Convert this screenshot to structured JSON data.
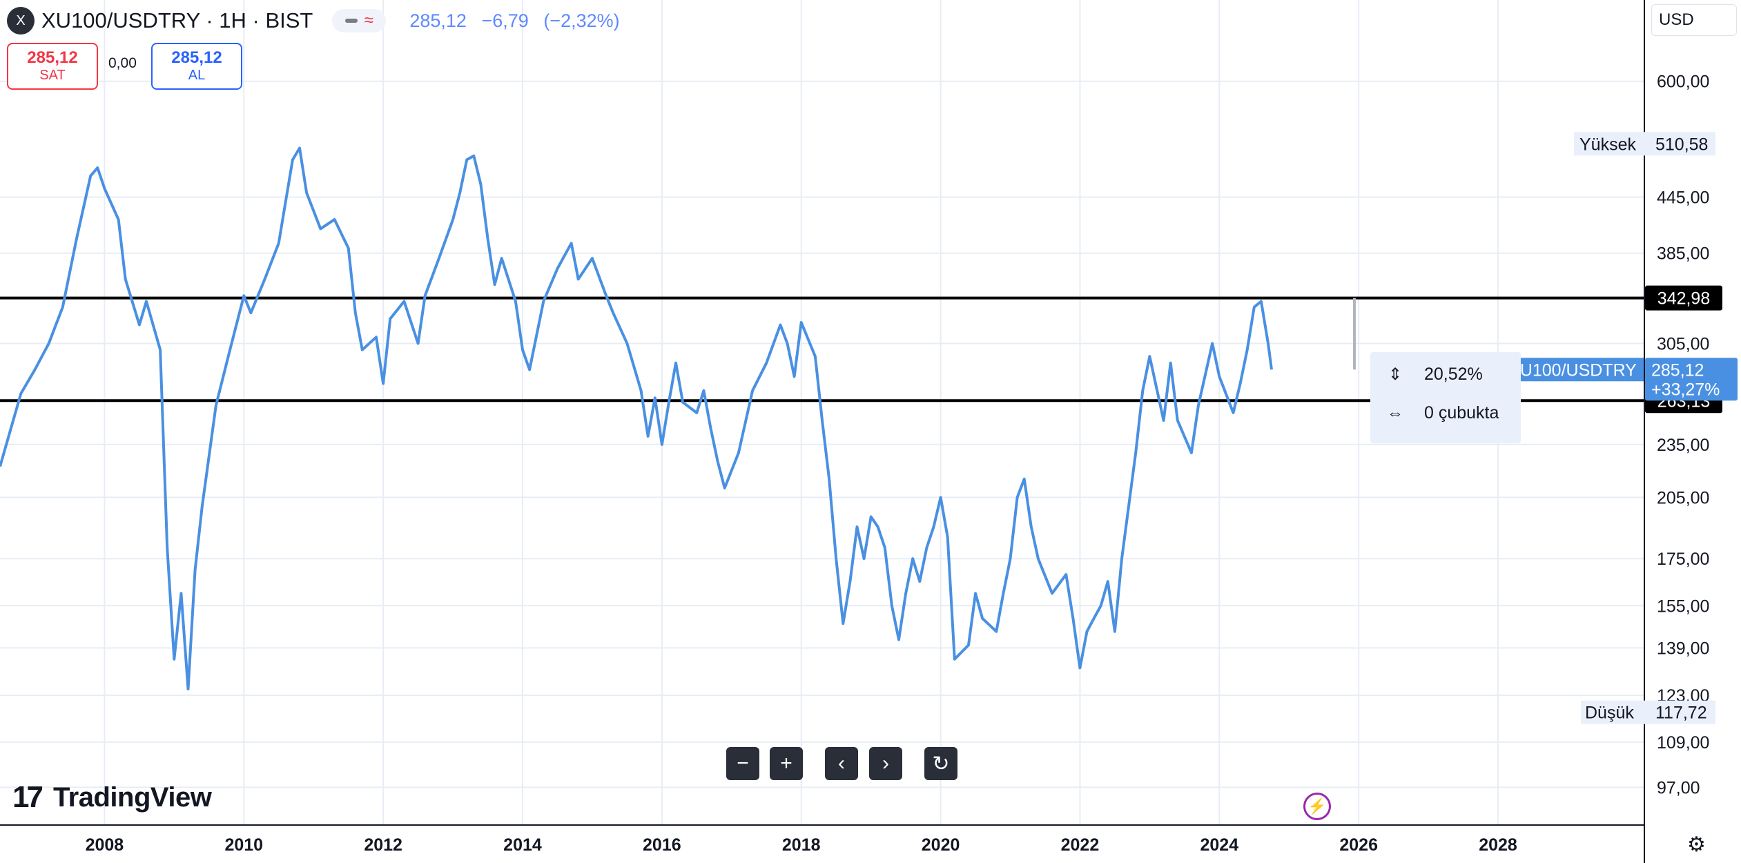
{
  "header": {
    "logo_letter": "X",
    "symbol_title": "XU100/USDTRY · 1H · BIST",
    "last_price": "285,12",
    "change": "−6,79",
    "change_percent": "(−2,32%)",
    "sell_price": "285,12",
    "sell_label": "SAT",
    "spread": "0,00",
    "buy_price": "285,12",
    "buy_label": "AL",
    "currency": "USD"
  },
  "chart_data": {
    "type": "line",
    "symbol": "XU100/USDTRY",
    "x_ticks": [
      "2008",
      "2010",
      "2012",
      "2014",
      "2016",
      "2018",
      "2020",
      "2022",
      "2024",
      "2026",
      "2028"
    ],
    "y_scale": "log",
    "y_ticks": [
      "97,00",
      "109,00",
      "123,00",
      "139,00",
      "155,00",
      "175,00",
      "205,00",
      "235,00",
      "305,00",
      "385,00",
      "445,00",
      "600,00"
    ],
    "xlim": [
      2006.5,
      2030.1
    ],
    "ylim": [
      88,
      665
    ],
    "series": [
      {
        "name": "XU100/USDTRY",
        "color": "#4a90e2",
        "points": [
          [
            2006.5,
            222
          ],
          [
            2006.8,
            268
          ],
          [
            2007.0,
            285
          ],
          [
            2007.2,
            305
          ],
          [
            2007.4,
            335
          ],
          [
            2007.6,
            400
          ],
          [
            2007.8,
            470
          ],
          [
            2007.9,
            480
          ],
          [
            2008.0,
            455
          ],
          [
            2008.2,
            420
          ],
          [
            2008.3,
            360
          ],
          [
            2008.5,
            320
          ],
          [
            2008.6,
            340
          ],
          [
            2008.8,
            300
          ],
          [
            2008.9,
            180
          ],
          [
            2009.0,
            135
          ],
          [
            2009.1,
            160
          ],
          [
            2009.2,
            125
          ],
          [
            2009.3,
            170
          ],
          [
            2009.4,
            200
          ],
          [
            2009.6,
            260
          ],
          [
            2009.8,
            300
          ],
          [
            2010.0,
            345
          ],
          [
            2010.1,
            330
          ],
          [
            2010.3,
            360
          ],
          [
            2010.5,
            395
          ],
          [
            2010.6,
            440
          ],
          [
            2010.7,
            490
          ],
          [
            2010.8,
            505
          ],
          [
            2010.9,
            450
          ],
          [
            2011.1,
            410
          ],
          [
            2011.3,
            420
          ],
          [
            2011.5,
            390
          ],
          [
            2011.6,
            330
          ],
          [
            2011.7,
            300
          ],
          [
            2011.9,
            310
          ],
          [
            2012.0,
            275
          ],
          [
            2012.1,
            325
          ],
          [
            2012.3,
            340
          ],
          [
            2012.5,
            305
          ],
          [
            2012.6,
            345
          ],
          [
            2012.8,
            380
          ],
          [
            2013.0,
            420
          ],
          [
            2013.1,
            450
          ],
          [
            2013.2,
            490
          ],
          [
            2013.3,
            495
          ],
          [
            2013.4,
            460
          ],
          [
            2013.5,
            400
          ],
          [
            2013.6,
            355
          ],
          [
            2013.7,
            380
          ],
          [
            2013.9,
            340
          ],
          [
            2014.0,
            300
          ],
          [
            2014.1,
            285
          ],
          [
            2014.3,
            340
          ],
          [
            2014.5,
            370
          ],
          [
            2014.7,
            395
          ],
          [
            2014.8,
            360
          ],
          [
            2015.0,
            380
          ],
          [
            2015.2,
            345
          ],
          [
            2015.3,
            330
          ],
          [
            2015.5,
            305
          ],
          [
            2015.7,
            270
          ],
          [
            2015.8,
            240
          ],
          [
            2015.9,
            265
          ],
          [
            2016.0,
            235
          ],
          [
            2016.1,
            262
          ],
          [
            2016.2,
            290
          ],
          [
            2016.3,
            262
          ],
          [
            2016.5,
            255
          ],
          [
            2016.6,
            270
          ],
          [
            2016.7,
            245
          ],
          [
            2016.8,
            225
          ],
          [
            2016.9,
            210
          ],
          [
            2017.1,
            230
          ],
          [
            2017.3,
            270
          ],
          [
            2017.5,
            290
          ],
          [
            2017.7,
            320
          ],
          [
            2017.8,
            305
          ],
          [
            2017.9,
            280
          ],
          [
            2018.0,
            322
          ],
          [
            2018.2,
            295
          ],
          [
            2018.3,
            250
          ],
          [
            2018.4,
            215
          ],
          [
            2018.5,
            175
          ],
          [
            2018.6,
            148
          ],
          [
            2018.7,
            165
          ],
          [
            2018.8,
            190
          ],
          [
            2018.9,
            175
          ],
          [
            2019.0,
            195
          ],
          [
            2019.1,
            190
          ],
          [
            2019.2,
            180
          ],
          [
            2019.3,
            155
          ],
          [
            2019.4,
            142
          ],
          [
            2019.5,
            160
          ],
          [
            2019.6,
            175
          ],
          [
            2019.7,
            165
          ],
          [
            2019.8,
            180
          ],
          [
            2019.9,
            190
          ],
          [
            2020.0,
            205
          ],
          [
            2020.1,
            185
          ],
          [
            2020.2,
            135
          ],
          [
            2020.4,
            140
          ],
          [
            2020.5,
            160
          ],
          [
            2020.6,
            150
          ],
          [
            2020.8,
            145
          ],
          [
            2020.9,
            160
          ],
          [
            2021.0,
            175
          ],
          [
            2021.1,
            205
          ],
          [
            2021.2,
            215
          ],
          [
            2021.3,
            190
          ],
          [
            2021.4,
            175
          ],
          [
            2021.6,
            160
          ],
          [
            2021.8,
            168
          ],
          [
            2021.9,
            150
          ],
          [
            2022.0,
            132
          ],
          [
            2022.1,
            145
          ],
          [
            2022.2,
            150
          ],
          [
            2022.3,
            155
          ],
          [
            2022.4,
            165
          ],
          [
            2022.5,
            145
          ],
          [
            2022.6,
            175
          ],
          [
            2022.8,
            230
          ],
          [
            2022.9,
            270
          ],
          [
            2023.0,
            295
          ],
          [
            2023.2,
            250
          ],
          [
            2023.3,
            290
          ],
          [
            2023.4,
            250
          ],
          [
            2023.6,
            230
          ],
          [
            2023.7,
            260
          ],
          [
            2023.9,
            305
          ],
          [
            2024.0,
            280
          ],
          [
            2024.2,
            255
          ],
          [
            2024.3,
            275
          ],
          [
            2024.4,
            300
          ],
          [
            2024.5,
            335
          ],
          [
            2024.6,
            340
          ],
          [
            2024.7,
            305
          ],
          [
            2024.75,
            285.12
          ]
        ]
      }
    ],
    "horizontal_lines": [
      {
        "value": 342.98,
        "label": "342,98"
      },
      {
        "value": 263.13,
        "label": "263,13"
      }
    ],
    "high": {
      "label": "Yüksek",
      "value": 510.58,
      "text": "510,58"
    },
    "low": {
      "label": "Düşük",
      "value": 117.72,
      "text": "117,72"
    },
    "current_price": {
      "value": 285.12,
      "label": "XU100/USDTRY",
      "price": "285,12",
      "percent": "+33,27%"
    },
    "grid": true
  },
  "measure_tool": {
    "percent": "20,52%",
    "bars": "0 çubukta"
  },
  "nav": {
    "zoom_out": "−",
    "zoom_in": "+",
    "scroll_left": "‹",
    "scroll_right": "›",
    "reset": "↻"
  },
  "branding": {
    "logo_mark": "17",
    "wordmark": "TradingView"
  },
  "icons": {
    "flash": "⚡",
    "settings": "⚙"
  },
  "colors": {
    "line": "#4a90e2",
    "sell": "#f23645",
    "buy": "#2962ff",
    "grid": "#e8edf5",
    "price_label": "#4a90e2"
  }
}
